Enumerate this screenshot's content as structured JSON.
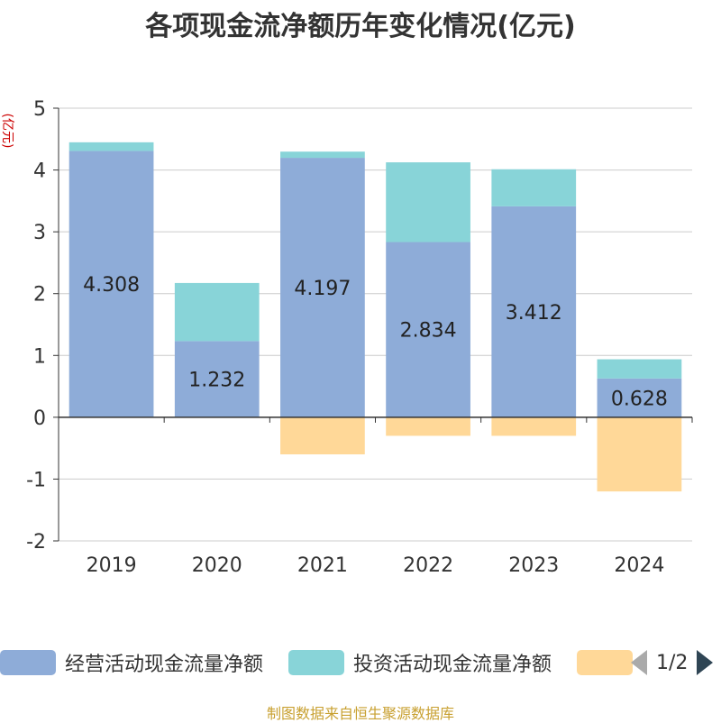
{
  "title": "各项现金流净额历年变化情况(亿元)",
  "source": "制图数据来自恒生聚源数据库",
  "pager": {
    "text": "1/2"
  },
  "legend": [
    {
      "label": "经营活动现金流量净额",
      "color": "#8eacd8"
    },
    {
      "label": "投资活动现金流量净额",
      "color": "#88d4d8"
    },
    {
      "label": "",
      "color": "#ffd898"
    }
  ],
  "chart_data": {
    "type": "bar",
    "stacked": true,
    "ylabel": "(亿元)",
    "ylim": [
      -2,
      5
    ],
    "yticks": [
      5,
      4,
      3,
      2,
      1,
      0,
      -1,
      -2
    ],
    "categories": [
      "2019",
      "2020",
      "2021",
      "2022",
      "2023",
      "2024"
    ],
    "series": [
      {
        "name": "经营活动现金流量净额",
        "color": "#8eacd8",
        "values": [
          4.308,
          1.232,
          4.197,
          2.834,
          3.412,
          0.628
        ],
        "labels": [
          "4.308",
          "1.232",
          "4.197",
          "2.834",
          "3.412",
          "0.628"
        ]
      },
      {
        "name": "投资活动现金流量净额",
        "color": "#88d4d8",
        "values": [
          0.14,
          0.94,
          0.1,
          1.29,
          0.6,
          0.31
        ]
      },
      {
        "name": "",
        "color": "#ffd898",
        "values": [
          0,
          0,
          -0.6,
          -0.3,
          -0.3,
          -1.2
        ]
      }
    ]
  }
}
